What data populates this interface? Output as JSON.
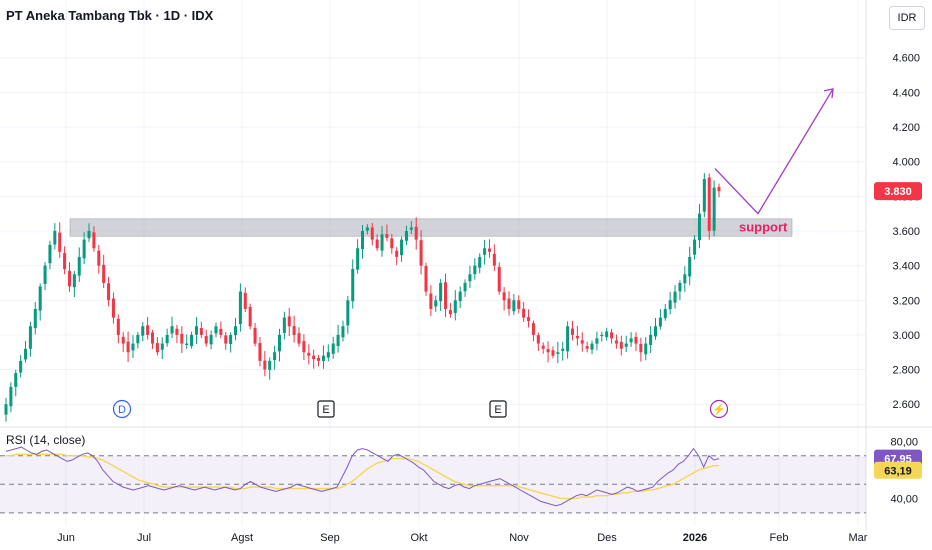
{
  "header": {
    "title": "PT Aneka Tambang Tbk · 1D · IDX",
    "currency": "IDR"
  },
  "rsi": {
    "label": "RSI (14, close)",
    "value_label": "67,95",
    "ma_label": "63,19",
    "value_color": "#7e57c2",
    "ma_color": "#f5d657",
    "levels": [
      {
        "label": "80,00",
        "value": 80
      },
      {
        "label": "40,00",
        "value": 40
      }
    ],
    "band": [
      30,
      70
    ]
  },
  "annotation": {
    "label": "support",
    "color": "#e91e63",
    "arrow_color": "#a238c8"
  },
  "events": [
    {
      "label": "D",
      "kind": "dividend",
      "color": "#2962ff"
    },
    {
      "label": "E",
      "kind": "earnings",
      "color": "#131722"
    },
    {
      "label": "E",
      "kind": "earnings",
      "color": "#131722"
    },
    {
      "label": "⚡",
      "kind": "split",
      "color": "#9c27b0"
    }
  ],
  "chart_data": {
    "type": "candlestick",
    "title": "PT Aneka Tambang Tbk · 1D · IDX",
    "price_axis": {
      "ticks": [
        {
          "label": "4.600",
          "value": 4600
        },
        {
          "label": "4.400",
          "value": 4400
        },
        {
          "label": "4.200",
          "value": 4200
        },
        {
          "label": "4.000",
          "value": 4000
        },
        {
          "label": "3.800",
          "value": 3800
        },
        {
          "label": "3.600",
          "value": 3600
        },
        {
          "label": "3.400",
          "value": 3400
        },
        {
          "label": "3.200",
          "value": 3200
        },
        {
          "label": "3.000",
          "value": 3000
        },
        {
          "label": "2.800",
          "value": 2800
        },
        {
          "label": "2.600",
          "value": 2600
        }
      ],
      "ylim": [
        2480,
        4760
      ],
      "last_price_label": "3.830",
      "last_price": 3830,
      "last_price_color": "#f23645"
    },
    "time_axis": {
      "labels": [
        {
          "label": "Jun",
          "bold": false
        },
        {
          "label": "Jul",
          "bold": false
        },
        {
          "label": "Agst",
          "bold": false
        },
        {
          "label": "Sep",
          "bold": false
        },
        {
          "label": "Okt",
          "bold": false
        },
        {
          "label": "Nov",
          "bold": false
        },
        {
          "label": "Des",
          "bold": false
        },
        {
          "label": "2026",
          "bold": true
        },
        {
          "label": "Feb",
          "bold": false
        },
        {
          "label": "Mar",
          "bold": false
        }
      ]
    },
    "up_color": "#089981",
    "down_color": "#f23645",
    "support_zone": [
      3570,
      3670
    ],
    "projection_path": [
      3960,
      3700,
      4420
    ],
    "series": [
      {
        "name": "close",
        "values": [
          2600,
          2700,
          2780,
          2850,
          2920,
          3050,
          3150,
          3280,
          3400,
          3520,
          3600,
          3480,
          3380,
          3280,
          3350,
          3450,
          3550,
          3600,
          3500,
          3400,
          3300,
          3200,
          3100,
          3000,
          2950,
          2900,
          2950,
          3000,
          3050,
          3000,
          2950,
          2900,
          2950,
          3000,
          3050,
          3000,
          2950,
          2950,
          3000,
          3050,
          3000,
          2950,
          3000,
          3050,
          3000,
          2950,
          3000,
          3050,
          3250,
          3150,
          3050,
          2950,
          2850,
          2800,
          2850,
          2900,
          3000,
          3100,
          3050,
          3000,
          2950,
          2900,
          2880,
          2860,
          2850,
          2880,
          2900,
          2950,
          3000,
          3050,
          3200,
          3380,
          3500,
          3600,
          3620,
          3550,
          3500,
          3580,
          3560,
          3500,
          3450,
          3550,
          3600,
          3620,
          3550,
          3400,
          3250,
          3150,
          3200,
          3300,
          3150,
          3120,
          3200,
          3250,
          3300,
          3350,
          3400,
          3450,
          3500,
          3480,
          3400,
          3250,
          3200,
          3150,
          3200,
          3150,
          3100,
          3080,
          3000,
          2950,
          2920,
          2900,
          2880,
          2900,
          2920,
          3050,
          3000,
          2980,
          2950,
          2920,
          2950,
          2980,
          3000,
          3020,
          2980,
          2950,
          2920,
          2950,
          2980,
          2950,
          2900,
          2950,
          3000,
          3050,
          3100,
          3150,
          3200,
          3250,
          3300,
          3350,
          3450,
          3550,
          3700,
          3900,
          3600,
          3850,
          3830
        ]
      },
      {
        "name": "rsi",
        "values": [
          73,
          74,
          75,
          76,
          74,
          72,
          71,
          73,
          74,
          72,
          70,
          68,
          66,
          67,
          69,
          71,
          72,
          70,
          66,
          60,
          56,
          52,
          50,
          48,
          47,
          46,
          47,
          48,
          49,
          48,
          47,
          46,
          47,
          48,
          49,
          48,
          47,
          46,
          47,
          48,
          47,
          46,
          47,
          48,
          47,
          46,
          47,
          50,
          52,
          50,
          48,
          47,
          46,
          45,
          46,
          47,
          48,
          50,
          49,
          48,
          47,
          46,
          45,
          46,
          47,
          48,
          55,
          62,
          70,
          74,
          75,
          74,
          72,
          70,
          68,
          66,
          70,
          71,
          69,
          67,
          65,
          62,
          60,
          56,
          52,
          50,
          48,
          47,
          49,
          50,
          48,
          47,
          49,
          50,
          51,
          52,
          53,
          54,
          52,
          50,
          48,
          46,
          44,
          42,
          40,
          38,
          37,
          36,
          35,
          36,
          38,
          40,
          42,
          43,
          42,
          44,
          46,
          45,
          44,
          43,
          44,
          46,
          48,
          47,
          45,
          46,
          47,
          48,
          52,
          55,
          58,
          60,
          64,
          66,
          70,
          75,
          70,
          62,
          70,
          67,
          68
        ]
      },
      {
        "name": "rsi_ma",
        "values": [
          70,
          70,
          71,
          71,
          71,
          71,
          71,
          71,
          71,
          71,
          71,
          71,
          70,
          70,
          70,
          70,
          69,
          69,
          68,
          67,
          65,
          63,
          61,
          59,
          57,
          55,
          53,
          52,
          51,
          50,
          49,
          48,
          48,
          48,
          48,
          48,
          48,
          48,
          48,
          48,
          48,
          48,
          48,
          48,
          48,
          47,
          47,
          47,
          48,
          48,
          48,
          48,
          48,
          47,
          47,
          47,
          47,
          47,
          47,
          47,
          47,
          47,
          47,
          47,
          47,
          47,
          48,
          50,
          52,
          55,
          58,
          61,
          63,
          65,
          66,
          67,
          68,
          68,
          68,
          68,
          67,
          66,
          64,
          62,
          60,
          58,
          56,
          54,
          52,
          51,
          50,
          49,
          49,
          49,
          49,
          49,
          49,
          49,
          49,
          49,
          49,
          48,
          47,
          46,
          45,
          44,
          43,
          42,
          41,
          40,
          40,
          40,
          40,
          41,
          41,
          41,
          42,
          42,
          42,
          43,
          43,
          44,
          44,
          45,
          45,
          45,
          46,
          46,
          47,
          48,
          49,
          50,
          52,
          54,
          56,
          58,
          60,
          61,
          62,
          63,
          63
        ]
      }
    ]
  }
}
